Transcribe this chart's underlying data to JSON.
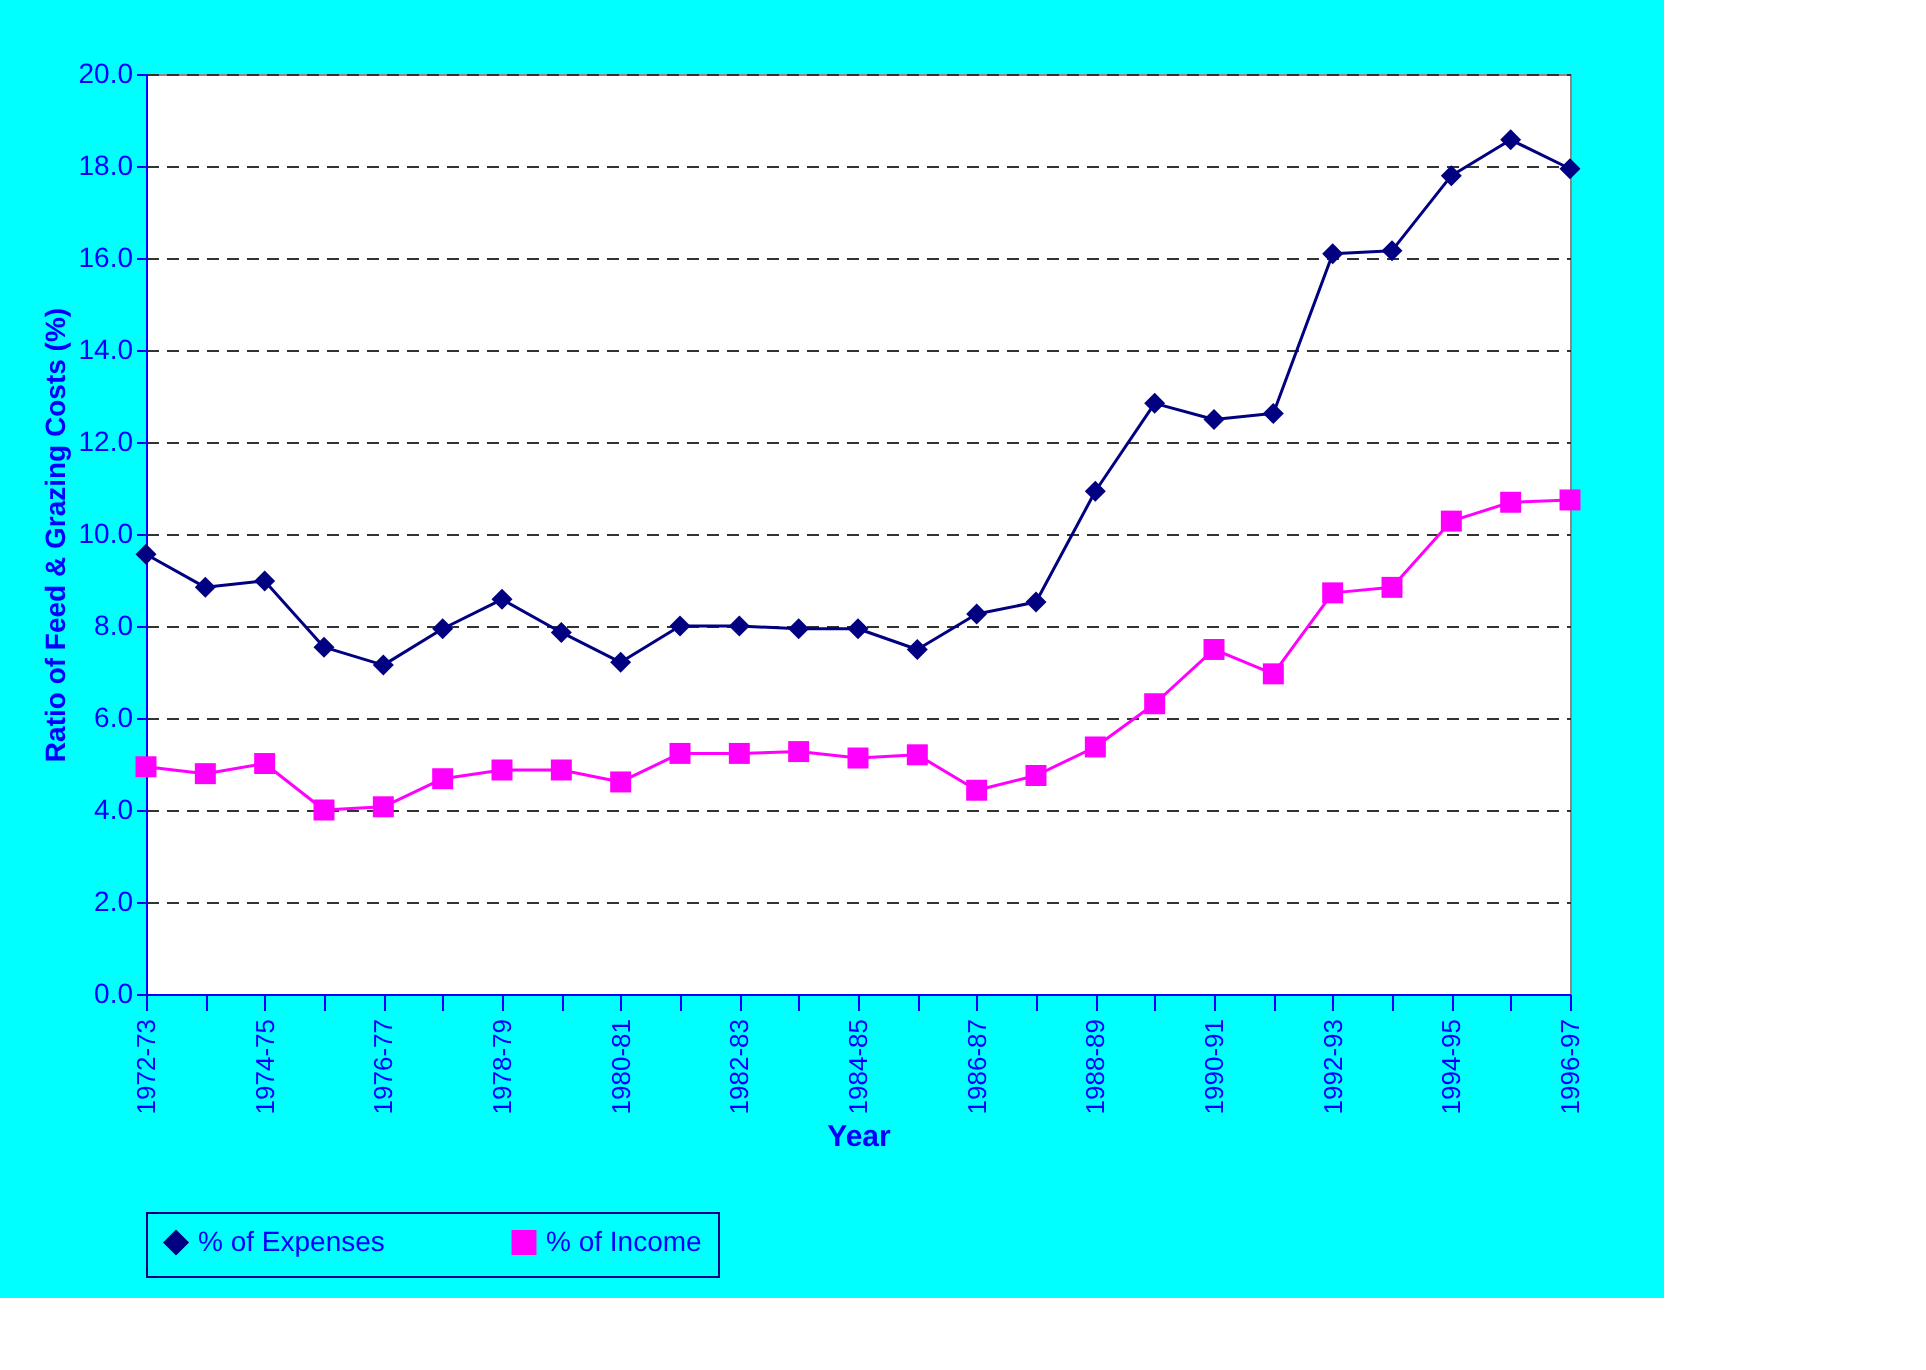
{
  "chart_data": {
    "type": "line",
    "xlabel": "Year",
    "ylabel": "Ratio of Feed & Grazing Costs (%)",
    "categories": [
      "1972-73",
      null,
      "1974-75",
      null,
      "1976-77",
      null,
      "1978-79",
      null,
      "1980-81",
      null,
      "1982-83",
      null,
      "1984-85",
      null,
      "1986-87",
      null,
      "1988-89",
      null,
      "1990-91",
      null,
      "1992-93",
      null,
      "1994-95",
      null,
      "1996-97"
    ],
    "series": [
      {
        "name": "% of Expenses",
        "color": "#000080",
        "marker": "diamond",
        "values": [
          9.56,
          8.84,
          8.98,
          7.54,
          7.15,
          7.94,
          8.58,
          7.86,
          7.21,
          8.0,
          8.0,
          7.94,
          7.94,
          7.49,
          8.26,
          8.52,
          10.93,
          12.84,
          12.49,
          12.62,
          16.09,
          16.16,
          17.79,
          18.57,
          17.94
        ]
      },
      {
        "name": "% of Income",
        "color": "#ff00ff",
        "marker": "square",
        "values": [
          4.94,
          4.79,
          5.01,
          4.0,
          4.07,
          4.68,
          4.87,
          4.87,
          4.61,
          5.23,
          5.23,
          5.27,
          5.13,
          5.2,
          4.43,
          4.75,
          5.37,
          6.31,
          7.49,
          6.96,
          8.72,
          8.84,
          10.28,
          10.69,
          10.74
        ]
      }
    ],
    "ylim": [
      0,
      20
    ],
    "yticks": [
      {
        "value": 0,
        "label": "0.0"
      },
      {
        "value": 2,
        "label": "2.0"
      },
      {
        "value": 4,
        "label": "4.0"
      },
      {
        "value": 6,
        "label": "6.0"
      },
      {
        "value": 8,
        "label": "8.0"
      },
      {
        "value": 10,
        "label": "10.0"
      },
      {
        "value": 12,
        "label": "12.0"
      },
      {
        "value": 14,
        "label": "14.0"
      },
      {
        "value": 16,
        "label": "16.0"
      },
      {
        "value": 18,
        "label": "18.0"
      },
      {
        "value": 20,
        "label": "20.0"
      }
    ],
    "grid": "y",
    "legend": "bottom",
    "line_style": "solid"
  }
}
